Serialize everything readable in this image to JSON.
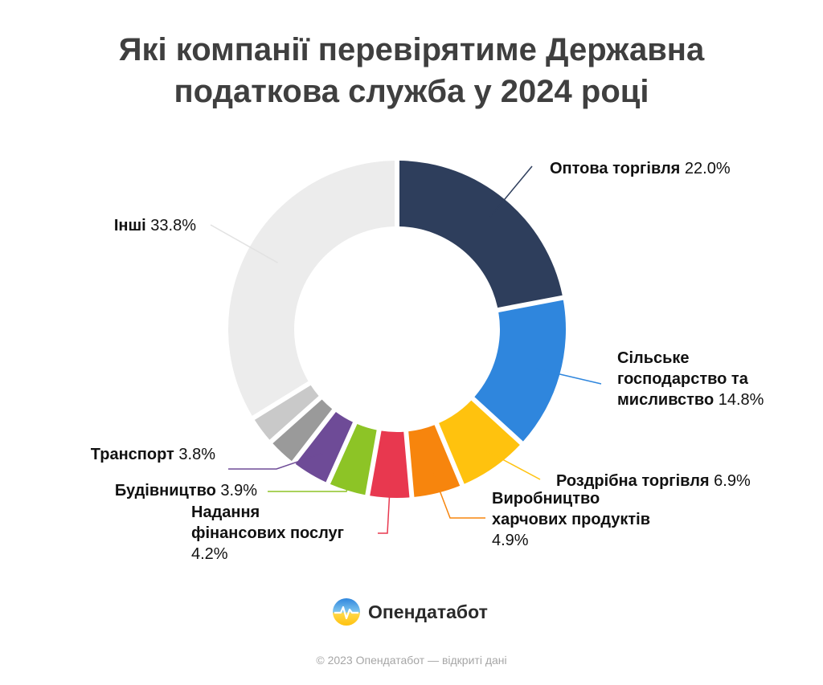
{
  "title_lines": [
    "Які компанії перевірятиме Державна",
    "податкова служба у 2024 році"
  ],
  "chart_data": {
    "type": "pie",
    "donut": true,
    "title": "Які компанії перевірятиме Державна податкова служба у 2024 році",
    "unit": "%",
    "slices": [
      {
        "label": "Оптова торгівля",
        "value": 22.0,
        "color": "#2e3e5c"
      },
      {
        "label": "Сільське господарство та мисливство",
        "value": 14.8,
        "color": "#2f86dd"
      },
      {
        "label": "Роздрібна торгівля",
        "value": 6.9,
        "color": "#ffc20e"
      },
      {
        "label": "Виробництво харчових продуктів",
        "value": 4.9,
        "color": "#f7850d"
      },
      {
        "label": "Надання фінансових послуг",
        "value": 4.2,
        "color": "#e8384f"
      },
      {
        "label": "Будівництво",
        "value": 3.9,
        "color": "#8dc426"
      },
      {
        "label": "Транспорт",
        "value": 3.8,
        "color": "#6e4b97"
      },
      {
        "label": "",
        "value": 2.9,
        "color": "#9a9a9a"
      },
      {
        "label": "",
        "value": 2.8,
        "color": "#c9c9c9"
      },
      {
        "label": "Інші",
        "value": 33.8,
        "color": "#ececec"
      }
    ],
    "value_labels": [
      "22.0%",
      "14.8%",
      "6.9%",
      "4.9%",
      "4.2%",
      "3.9%",
      "3.8%",
      "",
      "",
      "33.8%"
    ]
  },
  "brand": {
    "name": "Опендатабот",
    "icon": "heart-pulse-logo"
  },
  "footer": "© 2023 Опендатабот — відкриті дані"
}
